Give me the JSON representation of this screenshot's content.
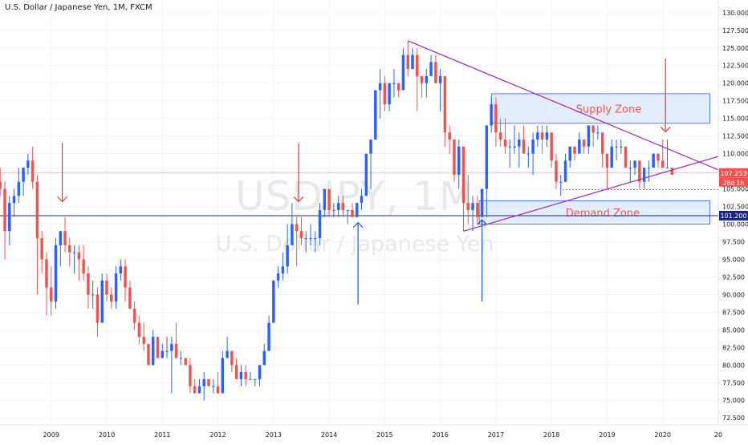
{
  "header": {
    "title": "U.S. Dollar / Japanese Yen, 1M, FXCM"
  },
  "watermark": {
    "symbol": "USDJPY, 1M",
    "name": "U.S. Dollar / Japanese Yen"
  },
  "colors": {
    "up": "#2962ff",
    "down": "#ef5350",
    "grid": "#f0f3fa",
    "axis_text": "#131722",
    "trendline": "#9c27b0",
    "zone_fill": "#dbe7fb",
    "zone_stroke": "#2962ff",
    "arrow_red": "#e53935",
    "arrow_blue": "#1e4fd8",
    "price_line": "#f7b2b2",
    "support_line": "#1a237e"
  },
  "chart_data": {
    "type": "candlestick",
    "title": "U.S. Dollar / Japanese Yen, 1M, FXCM",
    "x_ticks": [
      "2009",
      "2010",
      "2011",
      "2012",
      "2013",
      "2014",
      "2015",
      "2016",
      "2017",
      "2018",
      "2019",
      "2020",
      "20"
    ],
    "y_ticks": [
      130.0,
      127.5,
      125.0,
      122.5,
      120.0,
      117.5,
      115.0,
      112.5,
      110.0,
      107.5,
      105.0,
      102.5,
      100.0,
      97.5,
      95.0,
      92.5,
      90.0,
      87.5,
      85.0,
      82.5,
      80.0,
      77.5,
      75.0,
      72.5
    ],
    "y_tick_labels": [
      "130.000",
      "127.500",
      "125.000",
      "122.500",
      "120.000",
      "117.500",
      "115.000",
      "112.500",
      "110.000",
      "107.500",
      "105.000",
      "102.500",
      "100.000",
      "97.500",
      "95.000",
      "92.500",
      "90.000",
      "87.500",
      "85.000",
      "82.500",
      "80.000",
      "77.500",
      "75.000",
      "72.500"
    ],
    "ylim": [
      71.5,
      131.8
    ],
    "xlim": [
      2008.08,
      2021.0
    ],
    "candles": [
      [
        2008.0,
        107,
        108,
        105,
        106
      ],
      [
        2008.083,
        106,
        108,
        104,
        105
      ],
      [
        2008.167,
        105,
        106,
        95,
        99
      ],
      [
        2008.25,
        99,
        104,
        97,
        103
      ],
      [
        2008.333,
        103,
        105,
        101,
        104
      ],
      [
        2008.417,
        104,
        108,
        103,
        106
      ],
      [
        2008.5,
        106,
        108,
        104,
        108
      ],
      [
        2008.583,
        108,
        110,
        107,
        109
      ],
      [
        2008.667,
        109,
        111,
        105,
        106
      ],
      [
        2008.75,
        106,
        107,
        90,
        98
      ],
      [
        2008.833,
        98,
        99,
        93,
        95
      ],
      [
        2008.917,
        95,
        96,
        87,
        91
      ],
      [
        2009.0,
        91,
        94,
        87,
        89
      ],
      [
        2009.083,
        89,
        98,
        88,
        97
      ],
      [
        2009.167,
        97,
        99,
        94,
        99
      ],
      [
        2009.25,
        99,
        101,
        96,
        97
      ],
      [
        2009.333,
        97,
        98,
        94,
        96
      ],
      [
        2009.417,
        96,
        97,
        93,
        96
      ],
      [
        2009.5,
        96,
        97,
        92,
        95
      ],
      [
        2009.583,
        95,
        97,
        92,
        93
      ],
      [
        2009.667,
        93,
        94,
        88,
        90
      ],
      [
        2009.75,
        90,
        92,
        88,
        90
      ],
      [
        2009.833,
        90,
        91,
        84,
        86
      ],
      [
        2009.917,
        86,
        93,
        86,
        92
      ],
      [
        2010.0,
        92,
        93,
        89,
        90
      ],
      [
        2010.083,
        90,
        91,
        88,
        89
      ],
      [
        2010.167,
        89,
        94,
        88,
        93
      ],
      [
        2010.25,
        93,
        95,
        92,
        94
      ],
      [
        2010.333,
        94,
        95,
        89,
        91
      ],
      [
        2010.417,
        91,
        92,
        88,
        88
      ],
      [
        2010.5,
        88,
        89,
        85,
        86
      ],
      [
        2010.583,
        86,
        87,
        83,
        84
      ],
      [
        2010.667,
        84,
        86,
        82,
        83
      ],
      [
        2010.75,
        83,
        83,
        80,
        80
      ],
      [
        2010.833,
        80,
        85,
        80,
        84
      ],
      [
        2010.917,
        84,
        84,
        81,
        81
      ],
      [
        2011.0,
        81,
        83,
        81,
        82
      ],
      [
        2011.083,
        82,
        84,
        81,
        82
      ],
      [
        2011.167,
        82,
        84,
        76,
        83
      ],
      [
        2011.25,
        83,
        86,
        81,
        81
      ],
      [
        2011.333,
        81,
        82,
        80,
        81
      ],
      [
        2011.417,
        81,
        81,
        80,
        80
      ],
      [
        2011.5,
        80,
        81,
        76,
        77
      ],
      [
        2011.583,
        77,
        78,
        76,
        76
      ],
      [
        2011.667,
        76,
        78,
        76,
        77
      ],
      [
        2011.75,
        77,
        79,
        75,
        78
      ],
      [
        2011.833,
        78,
        78,
        77,
        77
      ],
      [
        2011.917,
        77,
        78,
        76,
        77
      ],
      [
        2012.0,
        77,
        79,
        76,
        76
      ],
      [
        2012.083,
        76,
        82,
        76,
        81
      ],
      [
        2012.167,
        81,
        84,
        81,
        82
      ],
      [
        2012.25,
        82,
        82,
        79,
        80
      ],
      [
        2012.333,
        80,
        81,
        78,
        78
      ],
      [
        2012.417,
        78,
        80,
        77,
        79
      ],
      [
        2012.5,
        79,
        80,
        77,
        78
      ],
      [
        2012.583,
        78,
        79,
        78,
        78
      ],
      [
        2012.667,
        78,
        78,
        77,
        78
      ],
      [
        2012.75,
        78,
        80,
        77,
        80
      ],
      [
        2012.833,
        80,
        83,
        80,
        82
      ],
      [
        2012.917,
        82,
        87,
        82,
        86
      ],
      [
        2013.0,
        86,
        92,
        86,
        92
      ],
      [
        2013.083,
        92,
        94,
        91,
        93
      ],
      [
        2013.167,
        93,
        96,
        92,
        94
      ],
      [
        2013.25,
        94,
        100,
        93,
        97
      ],
      [
        2013.333,
        97,
        103,
        97,
        100
      ],
      [
        2013.417,
        100,
        101,
        94,
        99
      ],
      [
        2013.5,
        99,
        101,
        97,
        98
      ],
      [
        2013.583,
        98,
        99,
        96,
        98
      ],
      [
        2013.667,
        98,
        100,
        97,
        98
      ],
      [
        2013.75,
        98,
        99,
        96,
        98
      ],
      [
        2013.833,
        98,
        103,
        97,
        102
      ],
      [
        2013.917,
        102,
        105,
        101,
        105
      ],
      [
        2014.0,
        105,
        105,
        101,
        102
      ],
      [
        2014.083,
        102,
        103,
        101,
        102
      ],
      [
        2014.167,
        102,
        104,
        101,
        103
      ],
      [
        2014.25,
        103,
        104,
        101,
        102
      ],
      [
        2014.333,
        102,
        102,
        100,
        102
      ],
      [
        2014.417,
        102,
        103,
        101,
        101
      ],
      [
        2014.5,
        101,
        103,
        101,
        103
      ],
      [
        2014.583,
        103,
        105,
        102,
        104
      ],
      [
        2014.667,
        104,
        110,
        104,
        110
      ],
      [
        2014.75,
        110,
        112,
        105,
        112
      ],
      [
        2014.833,
        112,
        119,
        112,
        119
      ],
      [
        2014.917,
        119,
        122,
        115,
        120
      ],
      [
        2015.0,
        120,
        121,
        116,
        117
      ],
      [
        2015.083,
        117,
        120,
        116,
        120
      ],
      [
        2015.167,
        120,
        122,
        118,
        120
      ],
      [
        2015.25,
        120,
        120,
        118,
        119
      ],
      [
        2015.333,
        119,
        125,
        119,
        124
      ],
      [
        2015.417,
        124,
        126,
        121,
        122
      ],
      [
        2015.5,
        122,
        125,
        122,
        124
      ],
      [
        2015.583,
        124,
        125,
        116,
        121
      ],
      [
        2015.667,
        121,
        121,
        118,
        120
      ],
      [
        2015.75,
        120,
        122,
        118,
        121
      ],
      [
        2015.833,
        121,
        124,
        121,
        123
      ],
      [
        2015.917,
        123,
        124,
        120,
        120
      ],
      [
        2016.0,
        120,
        122,
        116,
        121
      ],
      [
        2016.083,
        121,
        121,
        111,
        113
      ],
      [
        2016.167,
        113,
        114,
        110,
        112
      ],
      [
        2016.25,
        112,
        112,
        106,
        107
      ],
      [
        2016.333,
        107,
        112,
        105,
        111
      ],
      [
        2016.417,
        111,
        111,
        99,
        103
      ],
      [
        2016.5,
        103,
        107,
        100,
        102
      ],
      [
        2016.583,
        102,
        104,
        99,
        103
      ],
      [
        2016.667,
        103,
        104,
        100,
        101
      ],
      [
        2016.75,
        101,
        105,
        101,
        105
      ],
      [
        2016.833,
        105,
        114,
        101,
        114
      ],
      [
        2016.917,
        114,
        118,
        113,
        117
      ],
      [
        2017.0,
        117,
        118,
        111,
        113
      ],
      [
        2017.083,
        113,
        115,
        111,
        112
      ],
      [
        2017.167,
        112,
        115,
        110,
        111
      ],
      [
        2017.25,
        111,
        112,
        108,
        111
      ],
      [
        2017.333,
        111,
        114,
        110,
        111
      ],
      [
        2017.417,
        111,
        113,
        108,
        112
      ],
      [
        2017.5,
        112,
        114,
        110,
        110
      ],
      [
        2017.583,
        110,
        111,
        108,
        110
      ],
      [
        2017.667,
        110,
        113,
        107,
        112
      ],
      [
        2017.75,
        112,
        114,
        111,
        113
      ],
      [
        2017.833,
        113,
        114,
        110,
        112
      ],
      [
        2017.917,
        112,
        114,
        111,
        113
      ],
      [
        2018.0,
        113,
        113,
        108,
        109
      ],
      [
        2018.083,
        109,
        110,
        105,
        106
      ],
      [
        2018.167,
        106,
        107,
        104,
        106
      ],
      [
        2018.25,
        106,
        110,
        106,
        109
      ],
      [
        2018.333,
        109,
        111,
        108,
        111
      ],
      [
        2018.417,
        111,
        111,
        109,
        110
      ],
      [
        2018.5,
        110,
        113,
        110,
        112
      ],
      [
        2018.583,
        112,
        112,
        110,
        111
      ],
      [
        2018.667,
        111,
        114,
        110,
        114
      ],
      [
        2018.75,
        114,
        114,
        111,
        113
      ],
      [
        2018.833,
        113,
        114,
        112,
        113
      ],
      [
        2018.917,
        113,
        113,
        108,
        110
      ],
      [
        2019.0,
        110,
        110,
        105,
        108
      ],
      [
        2019.083,
        108,
        112,
        108,
        111
      ],
      [
        2019.167,
        111,
        112,
        109,
        111
      ],
      [
        2019.25,
        111,
        112,
        110,
        111
      ],
      [
        2019.333,
        111,
        111,
        108,
        108
      ],
      [
        2019.417,
        108,
        109,
        106,
        108
      ],
      [
        2019.5,
        108,
        109,
        107,
        109
      ],
      [
        2019.583,
        109,
        109,
        105,
        106
      ],
      [
        2019.667,
        106,
        108,
        105,
        108
      ],
      [
        2019.75,
        108,
        109,
        106,
        108
      ],
      [
        2019.833,
        108,
        110,
        108,
        110
      ],
      [
        2019.917,
        110,
        110,
        108,
        109
      ],
      [
        2020.0,
        109,
        112,
        108,
        108
      ],
      [
        2020.083,
        108,
        112,
        108,
        108
      ],
      [
        2020.167,
        108,
        108,
        107,
        107
      ]
    ],
    "current_price": {
      "value": 107.253,
      "label": "107.253",
      "countdown": "28d 1h"
    },
    "support_level": {
      "value": 101.2,
      "label": "101.200"
    },
    "dotted_level": 104.9,
    "trendlines": [
      {
        "from": [
          2015.42,
          126.0
        ],
        "to": [
          2021.0,
          107.7
        ]
      },
      {
        "from": [
          2016.42,
          99.0
        ],
        "to": [
          2021.0,
          109.6
        ]
      }
    ],
    "zones": [
      {
        "label": "Supply Zone",
        "x0": 2016.92,
        "x1": 2020.85,
        "y_top": 118.5,
        "y_bottom": 114.3
      },
      {
        "label": "Demand Zone",
        "x0": 2016.7,
        "x1": 2020.85,
        "y_top": 103.3,
        "y_bottom": 100.0
      }
    ],
    "arrows": [
      {
        "color": "red",
        "direction": "down",
        "x": 2009.2,
        "y_start": 111.5,
        "y_end": 103.2
      },
      {
        "color": "red",
        "direction": "down",
        "x": 2013.45,
        "y_start": 111.5,
        "y_end": 103.2
      },
      {
        "color": "red",
        "direction": "down",
        "x": 2020.05,
        "y_start": 123.5,
        "y_end": 113.1
      },
      {
        "color": "blue",
        "direction": "up",
        "x": 2014.52,
        "y_start": 88.6,
        "y_end": 100.2
      },
      {
        "color": "blue",
        "direction": "up",
        "x": 2016.75,
        "y_start": 89.0,
        "y_end": 100.6
      }
    ]
  }
}
